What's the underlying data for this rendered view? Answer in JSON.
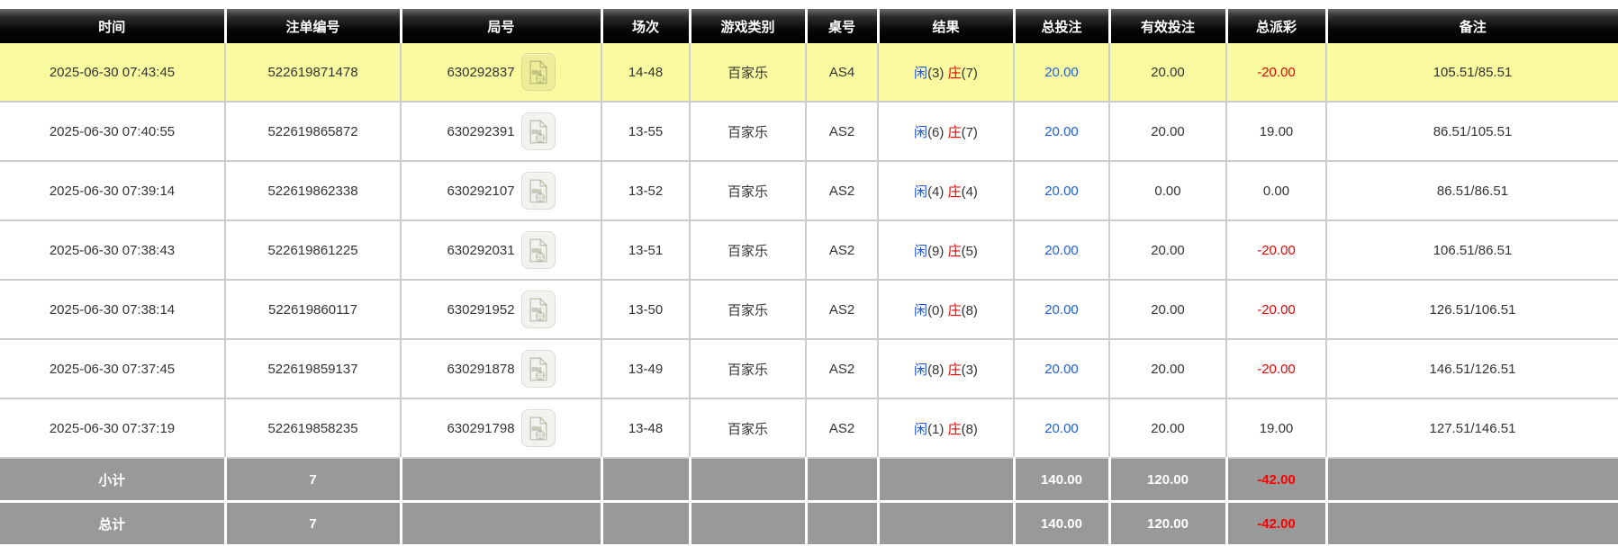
{
  "table": {
    "columns": [
      "时间",
      "注单编号",
      "局号",
      "场次",
      "游戏类别",
      "桌号",
      "结果",
      "总投注",
      "有效投注",
      "总派彩",
      "备注"
    ],
    "rows": [
      {
        "time": "2025-06-30 07:43:45",
        "bet_id": "522619871478",
        "round_id": "630292837",
        "session": "14-48",
        "game_type": "百家乐",
        "table_no": "AS4",
        "result": {
          "player_label": "闲",
          "player_points": "(3)",
          "banker_label": "庄",
          "banker_points": "(7)"
        },
        "total_bet": "20.00",
        "valid_bet": "20.00",
        "payout": "-20.00",
        "remark": "105.51/85.51",
        "highlighted": true
      },
      {
        "time": "2025-06-30 07:40:55",
        "bet_id": "522619865872",
        "round_id": "630292391",
        "session": "13-55",
        "game_type": "百家乐",
        "table_no": "AS2",
        "result": {
          "player_label": "闲",
          "player_points": "(6)",
          "banker_label": "庄",
          "banker_points": "(7)"
        },
        "total_bet": "20.00",
        "valid_bet": "20.00",
        "payout": "19.00",
        "remark": "86.51/105.51",
        "highlighted": false
      },
      {
        "time": "2025-06-30 07:39:14",
        "bet_id": "522619862338",
        "round_id": "630292107",
        "session": "13-52",
        "game_type": "百家乐",
        "table_no": "AS2",
        "result": {
          "player_label": "闲",
          "player_points": "(4)",
          "banker_label": "庄",
          "banker_points": "(4)"
        },
        "total_bet": "20.00",
        "valid_bet": "0.00",
        "payout": "0.00",
        "remark": "86.51/86.51",
        "highlighted": false
      },
      {
        "time": "2025-06-30 07:38:43",
        "bet_id": "522619861225",
        "round_id": "630292031",
        "session": "13-51",
        "game_type": "百家乐",
        "table_no": "AS2",
        "result": {
          "player_label": "闲",
          "player_points": "(9)",
          "banker_label": "庄",
          "banker_points": "(5)"
        },
        "total_bet": "20.00",
        "valid_bet": "20.00",
        "payout": "-20.00",
        "remark": "106.51/86.51",
        "highlighted": false
      },
      {
        "time": "2025-06-30 07:38:14",
        "bet_id": "522619860117",
        "round_id": "630291952",
        "session": "13-50",
        "game_type": "百家乐",
        "table_no": "AS2",
        "result": {
          "player_label": "闲",
          "player_points": "(0)",
          "banker_label": "庄",
          "banker_points": "(8)"
        },
        "total_bet": "20.00",
        "valid_bet": "20.00",
        "payout": "-20.00",
        "remark": "126.51/106.51",
        "highlighted": false
      },
      {
        "time": "2025-06-30 07:37:45",
        "bet_id": "522619859137",
        "round_id": "630291878",
        "session": "13-49",
        "game_type": "百家乐",
        "table_no": "AS2",
        "result": {
          "player_label": "闲",
          "player_points": "(8)",
          "banker_label": "庄",
          "banker_points": "(3)"
        },
        "total_bet": "20.00",
        "valid_bet": "20.00",
        "payout": "-20.00",
        "remark": "146.51/126.51",
        "highlighted": false
      },
      {
        "time": "2025-06-30 07:37:19",
        "bet_id": "522619858235",
        "round_id": "630291798",
        "session": "13-48",
        "game_type": "百家乐",
        "table_no": "AS2",
        "result": {
          "player_label": "闲",
          "player_points": "(1)",
          "banker_label": "庄",
          "banker_points": "(8)"
        },
        "total_bet": "20.00",
        "valid_bet": "20.00",
        "payout": "19.00",
        "remark": "127.51/146.51",
        "highlighted": false
      }
    ],
    "subtotal": {
      "label": "小计",
      "count": "7",
      "total_bet": "140.00",
      "valid_bet": "120.00",
      "payout": "-42.00"
    },
    "total": {
      "label": "总计",
      "count": "7",
      "total_bet": "140.00",
      "valid_bet": "120.00",
      "payout": "-42.00"
    }
  },
  "icons": {
    "replay": "video-replay-icon"
  },
  "colors": {
    "highlight_row": "#fafaa0",
    "header_bg": "#000000",
    "summary_bg": "#999999",
    "negative_red": "#ee0000",
    "bet_amount_blue": "#1f5fe0",
    "player_blue": "#2052e0",
    "banker_red": "#e80000",
    "row_border": "#cccccc"
  }
}
